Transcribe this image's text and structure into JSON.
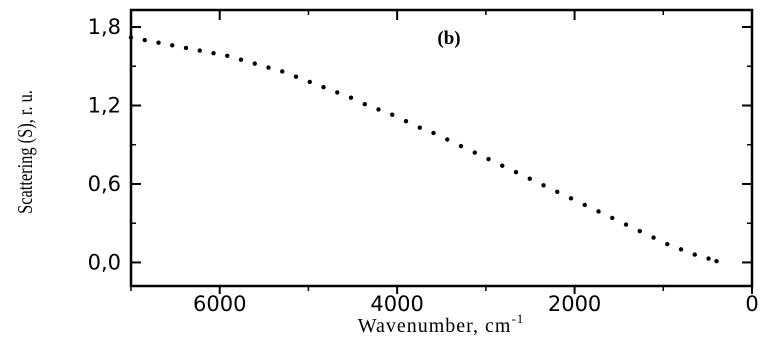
{
  "chart_data": {
    "type": "scatter",
    "panel_label": "(b)",
    "xlabel": "Wavenumber, cm",
    "xlabel_superscript": "-1",
    "ylabel": "Scattering (S), r. u.",
    "xlim": [
      7000,
      0
    ],
    "ylim": [
      -0.18,
      1.93
    ],
    "x_ticks": [
      6000,
      4000,
      2000,
      0
    ],
    "x_tick_labels": [
      "6000",
      "4000",
      "2000",
      "0"
    ],
    "y_ticks": [
      0.0,
      0.6,
      1.2,
      1.8
    ],
    "y_tick_labels": [
      "0,0",
      "0,6",
      "1,2",
      "1,8"
    ],
    "grid": false,
    "marker_color": "#000000",
    "x": [
      7000,
      6845,
      6690,
      6535,
      6380,
      6225,
      6070,
      5915,
      5760,
      5605,
      5450,
      5295,
      5140,
      4985,
      4830,
      4675,
      4520,
      4365,
      4210,
      4055,
      3900,
      3745,
      3590,
      3435,
      3280,
      3125,
      2970,
      2815,
      2660,
      2505,
      2350,
      2195,
      2040,
      1885,
      1730,
      1575,
      1420,
      1265,
      1110,
      955,
      800,
      645,
      490,
      400
    ],
    "y": [
      1.72,
      1.7,
      1.68,
      1.66,
      1.64,
      1.62,
      1.6,
      1.58,
      1.55,
      1.52,
      1.49,
      1.46,
      1.42,
      1.38,
      1.34,
      1.3,
      1.26,
      1.21,
      1.17,
      1.13,
      1.08,
      1.03,
      0.99,
      0.94,
      0.89,
      0.84,
      0.79,
      0.74,
      0.69,
      0.64,
      0.59,
      0.54,
      0.49,
      0.44,
      0.39,
      0.34,
      0.29,
      0.24,
      0.19,
      0.14,
      0.1,
      0.06,
      0.03,
      0.01
    ]
  }
}
